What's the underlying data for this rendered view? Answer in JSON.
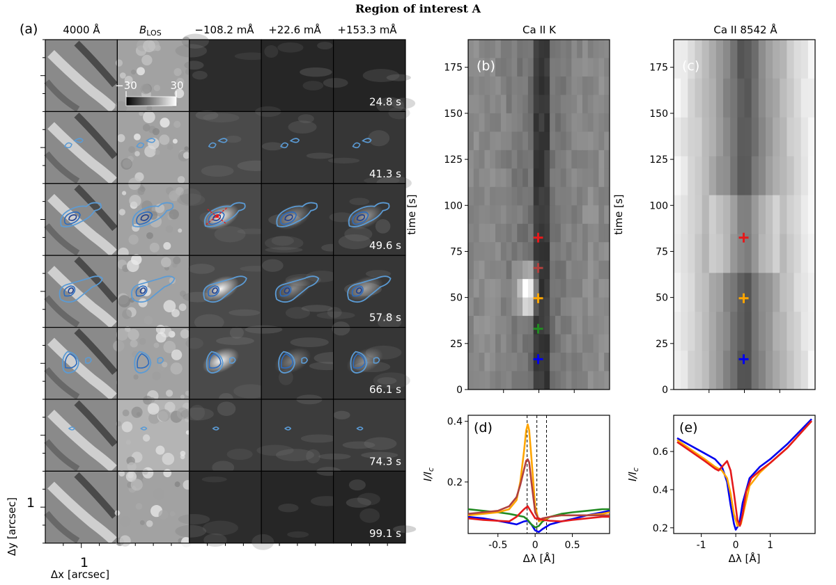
{
  "figure": {
    "title": "Region of interest A",
    "panel_labels": {
      "a": "(a)",
      "b": "(b)",
      "c": "(c)",
      "d": "(d)",
      "e": "(e)"
    },
    "grid": {
      "col_headers": [
        "4000 Å",
        "B",
        "−108.2 mÅ",
        "+22.6 mÅ",
        "+153.3 mÅ"
      ],
      "blos_sub": "LOS",
      "times": [
        "24.8 s",
        "41.3 s",
        "49.6 s",
        "57.8 s",
        "66.1 s",
        "74.3 s",
        "99.1 s"
      ],
      "colorbar": {
        "min_label": "−30",
        "max_label": "30"
      },
      "ylabel": "Δy [arcsec]",
      "xlabel": "Δx [arcsec]",
      "ytick": "1",
      "xtick": "1"
    },
    "colors": {
      "red": "#e41a1c",
      "brown": "#b0413e",
      "orange": "#ffa500",
      "green": "#228b22",
      "blue": "#0000ee",
      "contour_light": "#5b9bd5",
      "contour_dark": "#1f3f8f"
    }
  },
  "chart_data": [
    {
      "id": "b",
      "type": "heatmap",
      "title": "Ca II K",
      "xlabel": "",
      "ylabel": "time [s]",
      "ylim": [
        0,
        190
      ],
      "yticks": [
        "0",
        "25",
        "50",
        "75",
        "100",
        "125",
        "150",
        "175"
      ],
      "markers": [
        {
          "time": 82.5,
          "dlambda": 0.0,
          "color": "red"
        },
        {
          "time": 66.0,
          "dlambda": 0.0,
          "color": "brown"
        },
        {
          "time": 49.6,
          "dlambda": 0.0,
          "color": "orange"
        },
        {
          "time": 33.0,
          "dlambda": 0.0,
          "color": "green"
        },
        {
          "time": 16.5,
          "dlambda": 0.0,
          "color": "blue"
        }
      ]
    },
    {
      "id": "c",
      "type": "heatmap",
      "title": "Ca II 8542 Å",
      "xlabel": "",
      "ylabel": "time [s]",
      "ylim": [
        0,
        190
      ],
      "yticks": [
        "0",
        "25",
        "50",
        "75",
        "100",
        "125",
        "150",
        "175"
      ],
      "markers": [
        {
          "time": 82.5,
          "dlambda": 0.0,
          "color": "red"
        },
        {
          "time": 49.6,
          "dlambda": 0.0,
          "color": "orange"
        },
        {
          "time": 16.5,
          "dlambda": 0.0,
          "color": "blue"
        }
      ]
    },
    {
      "id": "d",
      "type": "line",
      "title": "",
      "xlabel": "Δλ [Å]",
      "ylabel": "I/I",
      "ylabel_sub": "c",
      "xlim": [
        -0.9,
        1.0
      ],
      "ylim": [
        0.03,
        0.42
      ],
      "xticks": [
        -0.5,
        0,
        0.5
      ],
      "xtick_labels": [
        "-0.5",
        "0",
        "0.5"
      ],
      "yticks": [
        0.2,
        0.4
      ],
      "ytick_labels": [
        "0.2",
        "0.4"
      ],
      "vlines": [
        -0.108,
        0.023,
        0.153
      ],
      "series": [
        {
          "name": "16.5 s",
          "color": "blue",
          "x": [
            -0.9,
            -0.7,
            -0.5,
            -0.35,
            -0.25,
            -0.15,
            -0.1,
            -0.05,
            0,
            0.05,
            0.1,
            0.2,
            0.35,
            0.5,
            0.7,
            0.9,
            1.0
          ],
          "y": [
            0.085,
            0.08,
            0.072,
            0.065,
            0.06,
            0.07,
            0.072,
            0.06,
            0.04,
            0.035,
            0.045,
            0.06,
            0.07,
            0.078,
            0.09,
            0.1,
            0.105
          ]
        },
        {
          "name": "33.0 s",
          "color": "green",
          "x": [
            -0.9,
            -0.7,
            -0.5,
            -0.35,
            -0.25,
            -0.15,
            -0.1,
            -0.05,
            0,
            0.05,
            0.1,
            0.2,
            0.35,
            0.5,
            0.7,
            0.9,
            1.0
          ],
          "y": [
            0.11,
            0.105,
            0.1,
            0.095,
            0.09,
            0.085,
            0.075,
            0.06,
            0.05,
            0.055,
            0.07,
            0.085,
            0.095,
            0.1,
            0.105,
            0.11,
            0.11
          ]
        },
        {
          "name": "49.6 s",
          "color": "orange",
          "x": [
            -0.9,
            -0.7,
            -0.5,
            -0.35,
            -0.25,
            -0.2,
            -0.15,
            -0.12,
            -0.1,
            -0.08,
            -0.05,
            0,
            0.05,
            0.1,
            0.2,
            0.35,
            0.5,
            0.7,
            0.9,
            1.0
          ],
          "y": [
            0.09,
            0.095,
            0.1,
            0.11,
            0.14,
            0.2,
            0.3,
            0.37,
            0.39,
            0.37,
            0.28,
            0.12,
            0.07,
            0.075,
            0.085,
            0.09,
            0.09,
            0.09,
            0.095,
            0.1
          ]
        },
        {
          "name": "66.0 s",
          "color": "brown",
          "x": [
            -0.9,
            -0.7,
            -0.5,
            -0.35,
            -0.25,
            -0.2,
            -0.15,
            -0.12,
            -0.1,
            -0.08,
            -0.05,
            0,
            0.05,
            0.1,
            0.2,
            0.35,
            0.5,
            0.7,
            0.9,
            1.0
          ],
          "y": [
            0.095,
            0.1,
            0.105,
            0.12,
            0.15,
            0.19,
            0.24,
            0.27,
            0.275,
            0.265,
            0.2,
            0.1,
            0.075,
            0.08,
            0.085,
            0.09,
            0.09,
            0.09,
            0.09,
            0.09
          ]
        },
        {
          "name": "82.5 s",
          "color": "red",
          "x": [
            -0.9,
            -0.7,
            -0.5,
            -0.35,
            -0.25,
            -0.15,
            -0.1,
            -0.05,
            0,
            0.05,
            0.1,
            0.2,
            0.35,
            0.5,
            0.7,
            0.9,
            1.0
          ],
          "y": [
            0.08,
            0.075,
            0.072,
            0.07,
            0.085,
            0.11,
            0.12,
            0.1,
            0.08,
            0.08,
            0.075,
            0.072,
            0.07,
            0.075,
            0.08,
            0.085,
            0.085
          ]
        }
      ]
    },
    {
      "id": "e",
      "type": "line",
      "title": "",
      "xlabel": "Δλ [Å]",
      "ylabel": "I/I",
      "ylabel_sub": "c",
      "xlim": [
        -1.8,
        2.3
      ],
      "ylim": [
        0.17,
        0.79
      ],
      "xticks": [
        -1,
        0,
        1
      ],
      "xtick_labels": [
        "-1",
        "0",
        "1"
      ],
      "yticks": [
        0.2,
        0.4,
        0.6
      ],
      "ytick_labels": [
        "0.2",
        "0.4",
        "0.6"
      ],
      "series": [
        {
          "name": "16.5 s",
          "color": "blue",
          "x": [
            -1.7,
            -1.3,
            -0.9,
            -0.6,
            -0.4,
            -0.25,
            -0.15,
            -0.05,
            0.0,
            0.1,
            0.2,
            0.4,
            0.7,
            1.0,
            1.5,
            2.2
          ],
          "y": [
            0.67,
            0.63,
            0.59,
            0.56,
            0.52,
            0.44,
            0.32,
            0.22,
            0.19,
            0.22,
            0.33,
            0.46,
            0.52,
            0.56,
            0.64,
            0.77
          ]
        },
        {
          "name": "49.6 s",
          "color": "orange",
          "x": [
            -1.7,
            -1.3,
            -0.9,
            -0.6,
            -0.4,
            -0.25,
            -0.15,
            -0.05,
            0.05,
            0.15,
            0.25,
            0.4,
            0.7,
            1.0,
            1.5,
            2.2
          ],
          "y": [
            0.66,
            0.61,
            0.56,
            0.52,
            0.5,
            0.46,
            0.38,
            0.27,
            0.21,
            0.22,
            0.3,
            0.42,
            0.49,
            0.54,
            0.62,
            0.76
          ]
        },
        {
          "name": "82.5 s",
          "color": "red",
          "x": [
            -1.7,
            -1.3,
            -0.9,
            -0.6,
            -0.5,
            -0.35,
            -0.25,
            -0.15,
            -0.05,
            0.05,
            0.12,
            0.2,
            0.3,
            0.45,
            0.7,
            1.0,
            1.5,
            2.2
          ],
          "y": [
            0.65,
            0.6,
            0.55,
            0.51,
            0.5,
            0.53,
            0.55,
            0.5,
            0.38,
            0.24,
            0.21,
            0.27,
            0.39,
            0.46,
            0.5,
            0.54,
            0.62,
            0.76
          ]
        }
      ]
    }
  ]
}
